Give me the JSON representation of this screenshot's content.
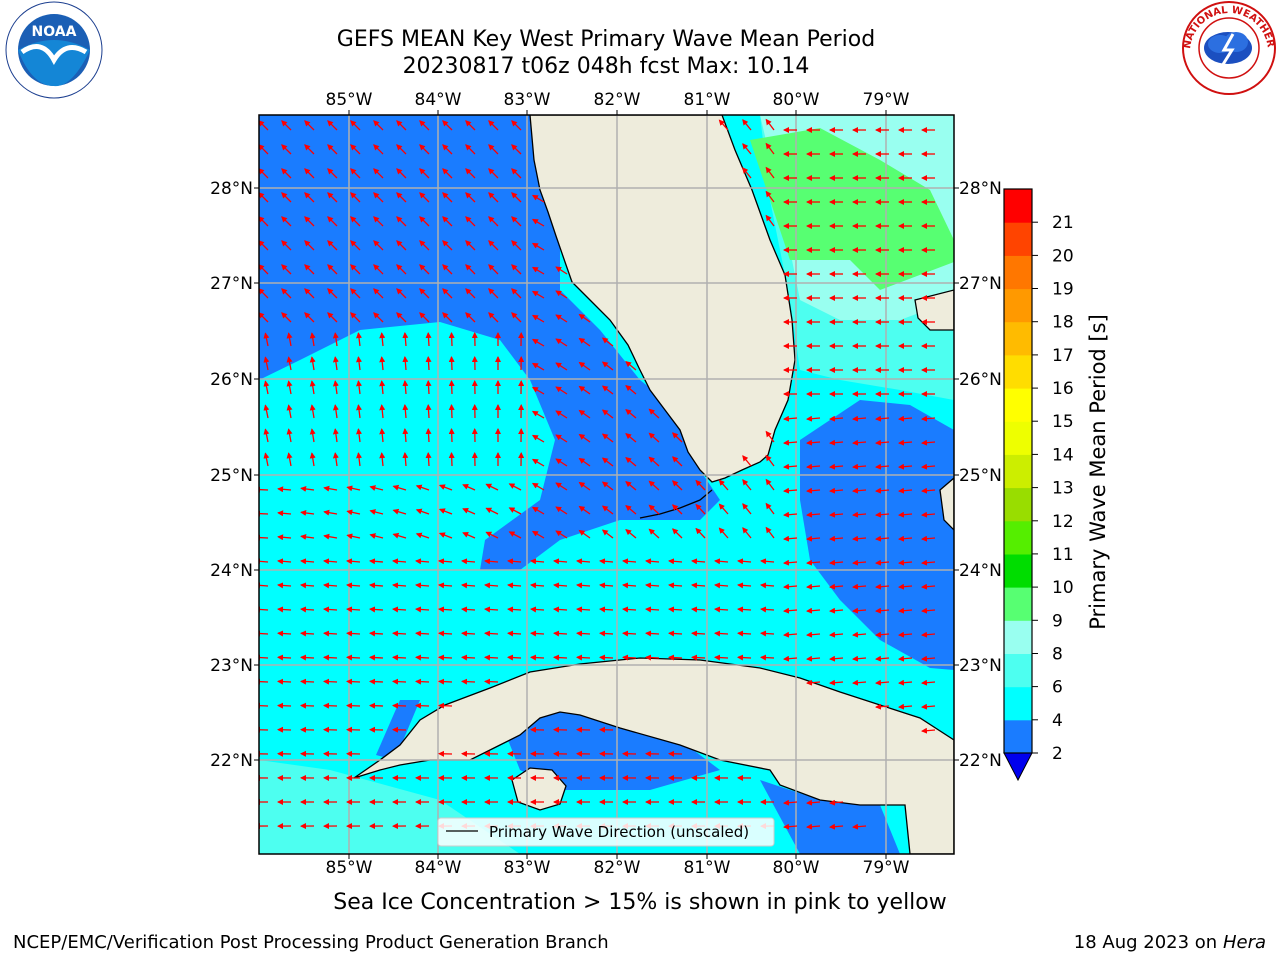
{
  "title": {
    "line1": "GEFS MEAN Key West Primary Wave Mean Period",
    "line2": "20230817 t06z 048h fcst   Max: 10.14"
  },
  "map": {
    "lon_ticks": [
      "85°W",
      "84°W",
      "83°W",
      "82°W",
      "81°W",
      "80°W",
      "79°W"
    ],
    "lat_ticks": [
      "28°N",
      "27°N",
      "26°N",
      "25°N",
      "24°N",
      "23°N",
      "22°N"
    ],
    "legend_label": "Primary Wave Direction (unscaled)",
    "colors": {
      "land": "#eeecdc",
      "period_2_4": "#1a7cff",
      "period_4_6": "#00ffff",
      "period_6_8": "#4dfff0",
      "period_8_9": "#99fff0",
      "period_9_10": "#57ff72",
      "arrow": "#ff0000"
    }
  },
  "colorbar": {
    "label": "Primary Wave Mean Period [s]",
    "ticks": [
      "2",
      "4",
      "6",
      "8",
      "9",
      "10",
      "11",
      "12",
      "13",
      "14",
      "15",
      "16",
      "17",
      "18",
      "19",
      "20",
      "21"
    ],
    "colors": [
      "#1a7cff",
      "#00ffff",
      "#4dfff0",
      "#99fff0",
      "#57ff72",
      "#00dd00",
      "#55ee00",
      "#99dd00",
      "#ccee00",
      "#eeff00",
      "#ffff00",
      "#ffdd00",
      "#ffbb00",
      "#ff9900",
      "#ff7700",
      "#ff4400",
      "#ff0000"
    ],
    "extend_color": "#0000ee"
  },
  "footer": {
    "sea_ice_note": "Sea Ice Concentration > 15% is shown in pink to yellow",
    "credit": "NCEP/EMC/Verification Post Processing Product Generation Branch",
    "date": "18 Aug 2023 on",
    "machine": "Hera"
  },
  "logos": {
    "noaa_text": "NOAA",
    "nws_text": "NATIONAL WEATHER SERVICE"
  }
}
